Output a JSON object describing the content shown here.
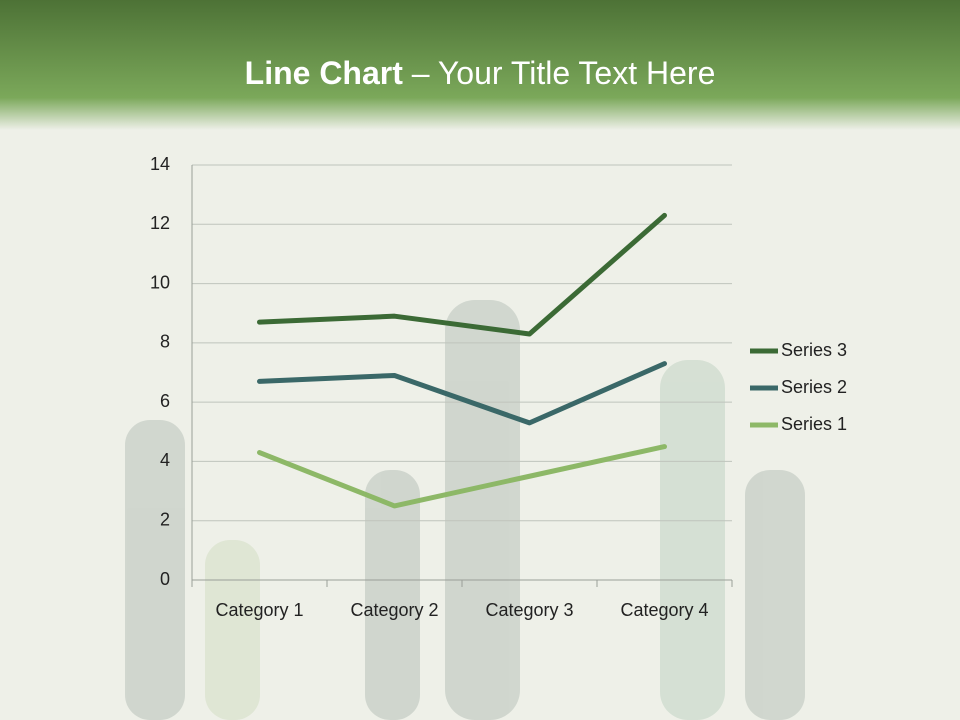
{
  "chart_data": {
    "type": "line",
    "stacked": true,
    "title_lead": "Line Chart",
    "title": "– Your Title Text Here",
    "categories": [
      "Category 1",
      "Category 2",
      "Category 3",
      "Category 4"
    ],
    "series": [
      {
        "name": "Series 1",
        "color": "#8db867",
        "values": [
          4.3,
          2.5,
          3.5,
          4.5
        ]
      },
      {
        "name": "Series 2",
        "color": "#3a6868",
        "values": [
          2.4,
          4.4,
          1.8,
          2.8
        ]
      },
      {
        "name": "Series 3",
        "color": "#3b6a35",
        "values": [
          2,
          2,
          3,
          5
        ]
      }
    ],
    "ylim": [
      0,
      14
    ],
    "yticks": [
      0,
      2,
      4,
      6,
      8,
      10,
      12,
      14
    ],
    "grid": true,
    "legend": "right"
  }
}
